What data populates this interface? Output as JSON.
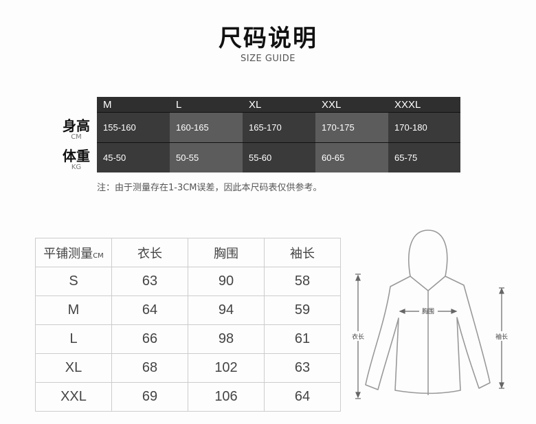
{
  "header": {
    "title": "尺码说明",
    "subtitle": "SIZE GUIDE"
  },
  "size_table": {
    "sizes": [
      "M",
      "L",
      "XL",
      "XXL",
      "XXXL"
    ],
    "rows": [
      {
        "label": "身高",
        "unit": "CM",
        "values": [
          "155-160",
          "160-165",
          "165-170",
          "170-175",
          "170-180"
        ]
      },
      {
        "label": "体重",
        "unit": "KG",
        "values": [
          "45-50",
          "50-55",
          "55-60",
          "60-65",
          "65-75"
        ]
      }
    ],
    "note": "注：由于测量存在1-3CM误差，因此本尺码表仅供参考。"
  },
  "measure_table": {
    "corner": "平铺测量",
    "corner_unit": "CM",
    "headers": [
      "衣长",
      "胸围",
      "袖长"
    ],
    "rows": [
      {
        "size": "S",
        "values": [
          "63",
          "90",
          "58"
        ]
      },
      {
        "size": "M",
        "values": [
          "64",
          "94",
          "59"
        ]
      },
      {
        "size": "L",
        "values": [
          "66",
          "98",
          "61"
        ]
      },
      {
        "size": "XL",
        "values": [
          "68",
          "102",
          "63"
        ]
      },
      {
        "size": "XXL",
        "values": [
          "69",
          "106",
          "64"
        ]
      }
    ]
  },
  "diagram": {
    "length_label": "衣长",
    "chest_label": "胸围",
    "sleeve_label": "袖长"
  }
}
